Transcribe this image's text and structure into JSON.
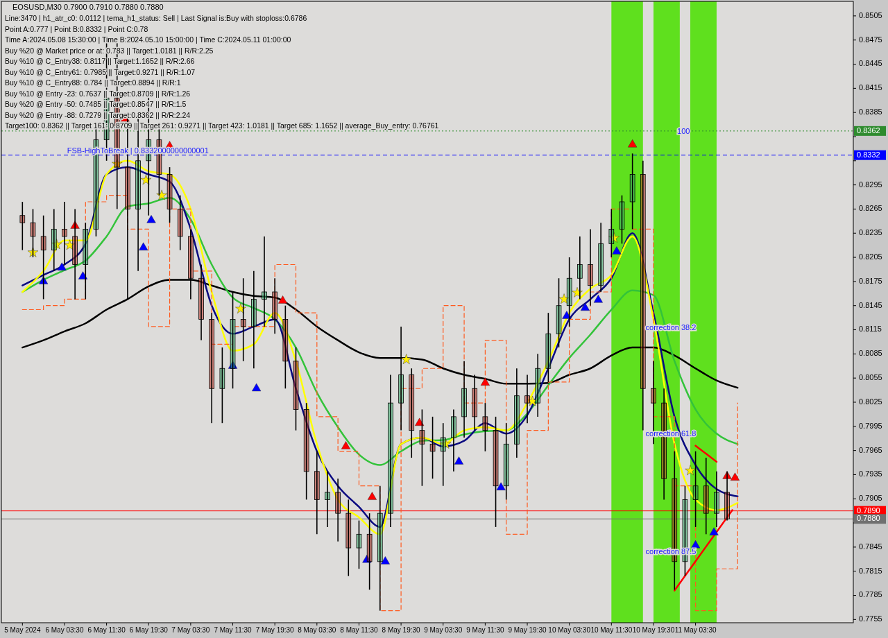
{
  "chart_data": {
    "type": "candlestick",
    "title": "EOSUSD,M30  0.7900 0.7910 0.7880 0.7880",
    "annotations": [
      "Line:3470 | h1_atr_c0: 0.0112 | tema_h1_status: Sell | Last Signal is:Buy with stoploss:0.6786",
      "Point A:0.777 | Point B:0.8332 | Point C:0.78",
      "Time A:2024.05.08 15:30:00 | Time B:2024.05.10 15:00:00 | Time C:2024.05.11 01:00:00",
      "Buy %20 @ Market price or at: 0.783 || Target:1.0181 || R/R:2.25",
      "Buy %10 @ C_Entry38: 0.8117 || Target:1.1652 || R/R:2.66",
      "Buy %10 @ C_Entry61: 0.7985 || Target:0.9271 || R/R:1.07",
      "Buy %10 @ C_Entry88: 0.784 || Target:0.8894 || R/R:1",
      "Buy %10 @ Entry -23: 0.7637 || Target:0.8709 || R/R:1.26",
      "Buy %20 @ Entry -50: 0.7485 || Target:0.8547 || R/R:1.5",
      "Buy %20 @ Entry -88: 0.7279 || Target:0.8362 || R/R:2.24",
      "Target100: 0.8362 || Target 161: 0.8709 || Target 261: 0.9271 || Target 423: 1.0181 || Target 685: 1.1652 || average_Buy_entry: 0.76761",
      {
        "text": "FSB-HighToBreak | 0.8332000000000001",
        "x": "2024-05-06T04:00",
        "y": 0.8332
      },
      {
        "text": "100",
        "x": "2024-05-11T00:00",
        "y": 0.8356
      },
      {
        "text": "correction 38.2",
        "x": "2024-05-10T18:00",
        "y": 0.8112
      },
      {
        "text": "correction 61.8",
        "x": "2024-05-10T18:00",
        "y": 0.798
      },
      {
        "text": "correction 87.5",
        "x": "2024-05-10T18:00",
        "y": 0.7834
      }
    ],
    "xlim": [
      "2024-05-05T15:30",
      "2024-05-12T09:30"
    ],
    "xticks": [
      {
        "value": "2024-05-05T19:30",
        "label": "5 May 2024"
      },
      {
        "value": "2024-05-06T03:30",
        "label": "6 May 03:30"
      },
      {
        "value": "2024-05-06T11:30",
        "label": "6 May 11:30"
      },
      {
        "value": "2024-05-06T19:30",
        "label": "6 May 19:30"
      },
      {
        "value": "2024-05-07T03:30",
        "label": "7 May 03:30"
      },
      {
        "value": "2024-05-07T11:30",
        "label": "7 May 11:30"
      },
      {
        "value": "2024-05-07T19:30",
        "label": "7 May 19:30"
      },
      {
        "value": "2024-05-08T03:30",
        "label": "8 May 03:30"
      },
      {
        "value": "2024-05-08T11:30",
        "label": "8 May 11:30"
      },
      {
        "value": "2024-05-08T19:30",
        "label": "8 May 19:30"
      },
      {
        "value": "2024-05-09T03:30",
        "label": "9 May 03:30"
      },
      {
        "value": "2024-05-09T11:30",
        "label": "9 May 11:30"
      },
      {
        "value": "2024-05-09T19:30",
        "label": "9 May 19:30"
      },
      {
        "value": "2024-05-10T03:30",
        "label": "10 May 03:30"
      },
      {
        "value": "2024-05-10T11:30",
        "label": "10 May 11:30"
      },
      {
        "value": "2024-05-10T19:30",
        "label": "10 May 19:30"
      },
      {
        "value": "2024-05-11T03:30",
        "label": "11 May 03:30"
      }
    ],
    "ylim": [
      0.7751,
      0.8523
    ],
    "yticks": [
      0.7755,
      0.7785,
      0.7815,
      0.7845,
      {
        "value": 0.7875,
        "label": null
      },
      0.7905,
      0.7935,
      0.7965,
      0.7995,
      0.8025,
      0.8055,
      0.8085,
      0.8115,
      0.8145,
      0.8175,
      0.8205,
      0.8235,
      0.8265,
      0.8295,
      {
        "value": 0.8325,
        "label": null
      },
      {
        "value": 0.8355,
        "label": null
      },
      0.8385,
      0.8415,
      0.8445,
      0.8475,
      0.8505
    ],
    "bands": [
      {
        "axis": "x",
        "from": "2024-05-10T11:30",
        "to": "2024-05-10T17:30",
        "color": "#5fe01e"
      },
      {
        "axis": "x",
        "from": "2024-05-10T19:30",
        "to": "2024-05-11T00:30",
        "color": "#5fe01e"
      },
      {
        "axis": "x",
        "from": "2024-05-11T02:30",
        "to": "2024-05-11T07:30",
        "color": "#5fe01e"
      }
    ],
    "ref_lines": [
      {
        "axis": "y",
        "value": 0.8362,
        "label": "0.8362",
        "color": "#2e8b2e",
        "line_style": "dotted"
      },
      {
        "axis": "y",
        "value": 0.8332,
        "label": "0.8332",
        "color": "#0000ff",
        "line_style": "dashed"
      },
      {
        "axis": "y",
        "value": 0.789,
        "label": "0.7890",
        "color": "#ff0000",
        "line_style": "solid"
      },
      {
        "axis": "y",
        "value": 0.788,
        "label": "0.7880",
        "color": "#707070",
        "line_style": "solid"
      }
    ],
    "x": [
      "2024-05-05T19:30",
      "2024-05-05T21:30",
      "2024-05-05T23:30",
      "2024-05-06T01:30",
      "2024-05-06T03:30",
      "2024-05-06T05:30",
      "2024-05-06T07:30",
      "2024-05-06T09:30",
      "2024-05-06T11:30",
      "2024-05-06T13:30",
      "2024-05-06T15:30",
      "2024-05-06T17:30",
      "2024-05-06T19:30",
      "2024-05-06T21:30",
      "2024-05-06T23:30",
      "2024-05-07T01:30",
      "2024-05-07T03:30",
      "2024-05-07T05:30",
      "2024-05-07T07:30",
      "2024-05-07T09:30",
      "2024-05-07T11:30",
      "2024-05-07T13:30",
      "2024-05-07T15:30",
      "2024-05-07T17:30",
      "2024-05-07T19:30",
      "2024-05-07T21:30",
      "2024-05-07T23:30",
      "2024-05-08T01:30",
      "2024-05-08T03:30",
      "2024-05-08T05:30",
      "2024-05-08T07:30",
      "2024-05-08T09:30",
      "2024-05-08T11:30",
      "2024-05-08T13:30",
      "2024-05-08T15:30",
      "2024-05-08T17:30",
      "2024-05-08T19:30",
      "2024-05-08T21:30",
      "2024-05-08T23:30",
      "2024-05-09T01:30",
      "2024-05-09T03:30",
      "2024-05-09T05:30",
      "2024-05-09T07:30",
      "2024-05-09T09:30",
      "2024-05-09T11:30",
      "2024-05-09T13:30",
      "2024-05-09T15:30",
      "2024-05-09T17:30",
      "2024-05-09T19:30",
      "2024-05-09T21:30",
      "2024-05-09T23:30",
      "2024-05-10T01:30",
      "2024-05-10T03:30",
      "2024-05-10T05:30",
      "2024-05-10T07:30",
      "2024-05-10T09:30",
      "2024-05-10T11:30",
      "2024-05-10T13:30",
      "2024-05-10T15:30",
      "2024-05-10T17:30",
      "2024-05-10T19:30",
      "2024-05-10T21:30",
      "2024-05-10T23:30",
      "2024-05-11T01:30",
      "2024-05-11T03:30",
      "2024-05-11T05:30",
      "2024-05-11T07:30",
      "2024-05-11T09:30"
    ],
    "ohlc": [
      [
        0.8257,
        0.8274,
        0.8214,
        0.8248
      ],
      [
        0.8248,
        0.8265,
        0.8205,
        0.8231
      ],
      [
        0.8231,
        0.8257,
        0.8153,
        0.8214
      ],
      [
        0.8214,
        0.8265,
        0.8188,
        0.824
      ],
      [
        0.824,
        0.8274,
        0.8196,
        0.8231
      ],
      [
        0.8231,
        0.8265,
        0.8153,
        0.8196
      ],
      [
        0.8196,
        0.8248,
        0.8153,
        0.824
      ],
      [
        0.824,
        0.8368,
        0.8231,
        0.8351
      ],
      [
        0.8351,
        0.848,
        0.8325,
        0.8403
      ],
      [
        0.8403,
        0.8471,
        0.8265,
        0.8317
      ],
      [
        0.8317,
        0.8385,
        0.8153,
        0.8265
      ],
      [
        0.8265,
        0.8377,
        0.8188,
        0.8325
      ],
      [
        0.8325,
        0.8403,
        0.8257,
        0.8351
      ],
      [
        0.8351,
        0.8368,
        0.8282,
        0.8308
      ],
      [
        0.8308,
        0.8317,
        0.8248,
        0.8265
      ],
      [
        0.8265,
        0.8282,
        0.8214,
        0.8231
      ],
      [
        0.8231,
        0.824,
        0.8153,
        0.8179
      ],
      [
        0.8179,
        0.8196,
        0.8102,
        0.8128
      ],
      [
        0.8128,
        0.8136,
        0.7999,
        0.8042
      ],
      [
        0.8042,
        0.8093,
        0.7999,
        0.8067
      ],
      [
        0.8067,
        0.8162,
        0.8042,
        0.8128
      ],
      [
        0.8128,
        0.8179,
        0.8076,
        0.8119
      ],
      [
        0.8119,
        0.8188,
        0.8067,
        0.8153
      ],
      [
        0.8153,
        0.8231,
        0.8119,
        0.8162
      ],
      [
        0.8162,
        0.8179,
        0.811,
        0.8128
      ],
      [
        0.8128,
        0.8145,
        0.8042,
        0.8076
      ],
      [
        0.8076,
        0.8093,
        0.799,
        0.8016
      ],
      [
        0.8016,
        0.8024,
        0.7904,
        0.7939
      ],
      [
        0.7939,
        0.7964,
        0.7861,
        0.7904
      ],
      [
        0.7904,
        0.7939,
        0.787,
        0.7913
      ],
      [
        0.7913,
        0.793,
        0.7852,
        0.7887
      ],
      [
        0.7887,
        0.7904,
        0.7809,
        0.7844
      ],
      [
        0.7844,
        0.7878,
        0.7818,
        0.7861
      ],
      [
        0.7861,
        0.7887,
        0.7792,
        0.7827
      ],
      [
        0.7827,
        0.7921,
        0.7766,
        0.7887
      ],
      [
        0.7887,
        0.8059,
        0.787,
        0.8024
      ],
      [
        0.8024,
        0.8119,
        0.799,
        0.8059
      ],
      [
        0.8059,
        0.8067,
        0.7956,
        0.799
      ],
      [
        0.799,
        0.8016,
        0.7921,
        0.7973
      ],
      [
        0.7973,
        0.8007,
        0.793,
        0.7964
      ],
      [
        0.7964,
        0.7999,
        0.7921,
        0.7981
      ],
      [
        0.7981,
        0.8016,
        0.7939,
        0.8007
      ],
      [
        0.8007,
        0.8076,
        0.7981,
        0.8042
      ],
      [
        0.8042,
        0.8059,
        0.799,
        0.8007
      ],
      [
        0.8007,
        0.8024,
        0.7964,
        0.799
      ],
      [
        0.799,
        0.8007,
        0.787,
        0.7921
      ],
      [
        0.7921,
        0.7999,
        0.7904,
        0.7973
      ],
      [
        0.7973,
        0.8067,
        0.7956,
        0.8033
      ],
      [
        0.8033,
        0.8059,
        0.7999,
        0.8024
      ],
      [
        0.8024,
        0.8085,
        0.8007,
        0.8067
      ],
      [
        0.8067,
        0.8136,
        0.805,
        0.811
      ],
      [
        0.811,
        0.8179,
        0.8093,
        0.8145
      ],
      [
        0.8145,
        0.8205,
        0.8119,
        0.8179
      ],
      [
        0.8179,
        0.8231,
        0.8153,
        0.8196
      ],
      [
        0.8196,
        0.824,
        0.8145,
        0.817
      ],
      [
        0.817,
        0.8248,
        0.8162,
        0.8222
      ],
      [
        0.8222,
        0.8265,
        0.8205,
        0.824
      ],
      [
        0.824,
        0.8282,
        0.8222,
        0.8274
      ],
      [
        0.8274,
        0.8334,
        0.824,
        0.8308
      ],
      [
        0.8308,
        0.8325,
        0.799,
        0.8042
      ],
      [
        0.8042,
        0.8076,
        0.7973,
        0.8024
      ],
      [
        0.8024,
        0.8042,
        0.7904,
        0.793
      ],
      [
        0.793,
        0.7964,
        0.7792,
        0.7827
      ],
      [
        0.7827,
        0.7921,
        0.7809,
        0.7904
      ],
      [
        0.7904,
        0.7964,
        0.787,
        0.7921
      ],
      [
        0.7921,
        0.7956,
        0.7861,
        0.7887
      ],
      [
        0.7887,
        0.7939,
        0.787,
        0.7913
      ],
      [
        0.7913,
        0.7939,
        0.7878,
        0.788
      ]
    ],
    "series": [
      {
        "type": "line",
        "color": "#000000",
        "x": [
          "2024-05-05T19:30",
          "2024-05-05T23:30",
          "2024-05-06T03:30",
          "2024-05-06T07:30",
          "2024-05-06T11:30",
          "2024-05-06T15:30",
          "2024-05-06T19:30",
          "2024-05-06T23:30",
          "2024-05-07T03:30",
          "2024-05-07T07:30",
          "2024-05-07T11:30",
          "2024-05-07T15:30",
          "2024-05-07T19:30",
          "2024-05-07T23:30",
          "2024-05-08T03:30",
          "2024-05-08T07:30",
          "2024-05-08T11:30",
          "2024-05-08T15:30",
          "2024-05-08T19:30",
          "2024-05-08T23:30",
          "2024-05-09T03:30",
          "2024-05-09T07:30",
          "2024-05-09T11:30",
          "2024-05-09T15:30",
          "2024-05-09T19:30",
          "2024-05-09T23:30",
          "2024-05-10T03:30",
          "2024-05-10T07:30",
          "2024-05-10T11:30",
          "2024-05-10T15:30",
          "2024-05-10T19:30",
          "2024-05-10T23:30",
          "2024-05-11T03:30",
          "2024-05-11T07:30",
          "2024-05-11T11:30"
        ],
        "values": [
          0.8093,
          0.8102,
          0.8113,
          0.8123,
          0.814,
          0.8153,
          0.8169,
          0.8177,
          0.8177,
          0.817,
          0.8162,
          0.8157,
          0.8155,
          0.814,
          0.8119,
          0.8102,
          0.8087,
          0.808,
          0.808,
          0.8078,
          0.8067,
          0.8059,
          0.8054,
          0.8048,
          0.8048,
          0.8049,
          0.8059,
          0.8067,
          0.8083,
          0.8093,
          0.8093,
          0.8083,
          0.8067,
          0.8052,
          0.8043
        ]
      },
      {
        "type": "line",
        "color": "#33c33a",
        "x": [
          "2024-05-05T19:30",
          "2024-05-05T23:30",
          "2024-05-06T03:30",
          "2024-05-06T07:30",
          "2024-05-06T11:30",
          "2024-05-06T15:30",
          "2024-05-06T19:30",
          "2024-05-06T23:30",
          "2024-05-07T03:30",
          "2024-05-07T07:30",
          "2024-05-07T11:30",
          "2024-05-07T15:30",
          "2024-05-07T19:30",
          "2024-05-07T23:30",
          "2024-05-08T03:30",
          "2024-05-08T07:30",
          "2024-05-08T11:30",
          "2024-05-08T15:30",
          "2024-05-08T19:30",
          "2024-05-08T23:30",
          "2024-05-09T03:30",
          "2024-05-09T07:30",
          "2024-05-09T11:30",
          "2024-05-09T15:30",
          "2024-05-09T19:30",
          "2024-05-09T23:30",
          "2024-05-10T03:30",
          "2024-05-10T07:30",
          "2024-05-10T11:30",
          "2024-05-10T15:30",
          "2024-05-10T19:30",
          "2024-05-10T23:30",
          "2024-05-11T03:30",
          "2024-05-11T07:30",
          "2024-05-11T11:30"
        ],
        "values": [
          0.8162,
          0.8177,
          0.8189,
          0.8201,
          0.8231,
          0.8268,
          0.8272,
          0.8279,
          0.8252,
          0.8196,
          0.8155,
          0.8142,
          0.8128,
          0.8093,
          0.8037,
          0.7994,
          0.796,
          0.7947,
          0.7964,
          0.7977,
          0.7978,
          0.7985,
          0.7989,
          0.799,
          0.8011,
          0.8046,
          0.808,
          0.8109,
          0.814,
          0.8164,
          0.8158,
          0.8076,
          0.8016,
          0.7986,
          0.7973
        ]
      },
      {
        "type": "line",
        "color": "#0a0a80",
        "x": [
          "2024-05-05T19:30",
          "2024-05-05T23:30",
          "2024-05-06T03:30",
          "2024-05-06T07:30",
          "2024-05-06T11:30",
          "2024-05-06T15:30",
          "2024-05-06T19:30",
          "2024-05-06T23:30",
          "2024-05-07T03:30",
          "2024-05-07T07:30",
          "2024-05-07T11:30",
          "2024-05-07T15:30",
          "2024-05-07T19:30",
          "2024-05-07T23:30",
          "2024-05-08T03:30",
          "2024-05-08T07:30",
          "2024-05-08T11:30",
          "2024-05-08T15:30",
          "2024-05-08T19:30",
          "2024-05-08T23:30",
          "2024-05-09T03:30",
          "2024-05-09T07:30",
          "2024-05-09T11:30",
          "2024-05-09T15:30",
          "2024-05-09T19:30",
          "2024-05-09T23:30",
          "2024-05-10T03:30",
          "2024-05-10T07:30",
          "2024-05-10T11:30",
          "2024-05-10T15:30",
          "2024-05-10T19:30",
          "2024-05-10T23:30",
          "2024-05-11T03:30",
          "2024-05-11T07:30",
          "2024-05-11T11:30"
        ],
        "values": [
          0.817,
          0.8183,
          0.8196,
          0.8222,
          0.8308,
          0.8317,
          0.8308,
          0.8299,
          0.824,
          0.8145,
          0.811,
          0.8119,
          0.8128,
          0.8042,
          0.7964,
          0.7921,
          0.7895,
          0.787,
          0.7973,
          0.7981,
          0.797,
          0.7977,
          0.7999,
          0.7986,
          0.8009,
          0.8067,
          0.8128,
          0.8153,
          0.8179,
          0.8235,
          0.8136,
          0.8007,
          0.7947,
          0.7917,
          0.7908
        ]
      },
      {
        "type": "line",
        "color": "#ffff00",
        "x": [
          "2024-05-05T19:30",
          "2024-05-05T23:30",
          "2024-05-06T03:30",
          "2024-05-06T07:30",
          "2024-05-06T11:30",
          "2024-05-06T15:30",
          "2024-05-06T19:30",
          "2024-05-06T23:30",
          "2024-05-07T03:30",
          "2024-05-07T07:30",
          "2024-05-07T11:30",
          "2024-05-07T15:30",
          "2024-05-07T19:30",
          "2024-05-07T23:30",
          "2024-05-08T03:30",
          "2024-05-08T07:30",
          "2024-05-08T11:30",
          "2024-05-08T15:30",
          "2024-05-08T19:30",
          "2024-05-08T23:30",
          "2024-05-09T03:30",
          "2024-05-09T07:30",
          "2024-05-09T11:30",
          "2024-05-09T15:30",
          "2024-05-09T19:30",
          "2024-05-09T23:30",
          "2024-05-10T03:30",
          "2024-05-10T07:30",
          "2024-05-10T11:30",
          "2024-05-10T15:30",
          "2024-05-10T19:30",
          "2024-05-10T23:30",
          "2024-05-11T03:30",
          "2024-05-11T07:30",
          "2024-05-11T11:30"
        ],
        "values": [
          0.8162,
          0.8188,
          0.8226,
          0.8226,
          0.8308,
          0.8325,
          0.8312,
          0.8308,
          0.8265,
          0.8162,
          0.8089,
          0.8097,
          0.8136,
          0.8076,
          0.7973,
          0.7904,
          0.7882,
          0.7861,
          0.7973,
          0.7981,
          0.7973,
          0.799,
          0.7994,
          0.799,
          0.8024,
          0.8076,
          0.8136,
          0.8166,
          0.8183,
          0.8231,
          0.8128,
          0.7973,
          0.7904,
          0.7891,
          0.79
        ]
      },
      {
        "type": "step",
        "color": "#ff5a1e",
        "line_style": "dashed",
        "x": [
          "2024-05-05T19:30",
          "2024-05-05T23:30",
          "2024-05-06T03:30",
          "2024-05-06T07:30",
          "2024-05-06T11:30",
          "2024-05-06T15:30",
          "2024-05-06T19:30",
          "2024-05-06T23:30",
          "2024-05-07T03:30",
          "2024-05-07T07:30",
          "2024-05-07T11:30",
          "2024-05-07T15:30",
          "2024-05-07T19:30",
          "2024-05-07T23:30",
          "2024-05-08T03:30",
          "2024-05-08T07:30",
          "2024-05-08T11:30",
          "2024-05-08T15:30",
          "2024-05-08T19:30",
          "2024-05-08T23:30",
          "2024-05-09T03:30",
          "2024-05-09T07:30",
          "2024-05-09T11:30",
          "2024-05-09T15:30",
          "2024-05-09T19:30",
          "2024-05-09T23:30",
          "2024-05-10T03:30",
          "2024-05-10T07:30",
          "2024-05-10T11:30",
          "2024-05-10T15:30",
          "2024-05-10T19:30",
          "2024-05-10T23:30",
          "2024-05-11T03:30",
          "2024-05-11T07:30",
          "2024-05-11T11:30"
        ],
        "values": [
          0.814,
          0.8145,
          0.8153,
          0.8274,
          0.8282,
          0.824,
          0.8119,
          0.8265,
          0.8188,
          0.8097,
          0.8119,
          0.8119,
          0.8196,
          0.8136,
          0.8007,
          0.7964,
          0.7921,
          0.7766,
          0.8042,
          0.8067,
          0.8145,
          0.8024,
          0.8102,
          0.7861,
          0.799,
          0.805,
          0.8128,
          0.8162,
          0.8265,
          0.824,
          0.8007,
          0.7921,
          0.7766,
          0.7818,
          0.8024
        ]
      },
      {
        "type": "line",
        "color": "#ff0000",
        "x": [
          "2024-05-10T23:30",
          "2024-05-11T10:30"
        ],
        "values": [
          0.7791,
          0.7891
        ]
      },
      {
        "type": "line",
        "color": "#ff0000",
        "x": [
          "2024-05-11T03:30",
          "2024-05-11T07:30"
        ],
        "values": [
          0.7971,
          0.7951
        ]
      },
      {
        "type": "scatter",
        "color": "#0000ff",
        "marker": "triangle",
        "x": [
          "2024-05-05T23:30",
          "2024-05-06T03:00",
          "2024-05-06T07:00",
          "2024-05-06T18:30",
          "2024-05-06T20:00",
          "2024-05-07T11:30",
          "2024-05-07T16:00",
          "2024-05-08T13:00",
          "2024-05-08T16:30",
          "2024-05-09T06:30",
          "2024-05-09T14:30",
          "2024-05-10T03:00",
          "2024-05-10T06:30",
          "2024-05-10T09:00",
          "2024-05-10T12:30",
          "2024-05-11T03:30",
          "2024-05-11T07:00"
        ],
        "values": [
          0.8175,
          0.8192,
          0.8181,
          0.8217,
          0.8251,
          0.807,
          0.8042,
          0.7829,
          0.7827,
          0.7951,
          0.7919,
          0.8132,
          0.8142,
          0.8152,
          0.8212,
          0.7847,
          0.7863
        ]
      },
      {
        "type": "scatter",
        "color": "#ff0000",
        "marker": "triangle",
        "x": [
          "2024-05-06T05:30",
          "2024-05-06T15:00",
          "2024-05-06T23:30",
          "2024-05-07T21:00",
          "2024-05-08T09:00",
          "2024-05-08T14:00",
          "2024-05-08T23:00",
          "2024-05-09T11:30",
          "2024-05-10T15:30",
          "2024-05-11T09:30",
          "2024-05-11T11:00"
        ],
        "values": [
          0.8244,
          0.8377,
          0.8343,
          0.8151,
          0.797,
          0.7907,
          0.7999,
          0.8049,
          0.8345,
          0.7933,
          0.7931
        ]
      },
      {
        "type": "scatter",
        "color": "#ffee00",
        "marker": "star",
        "x": [
          "2024-05-05T21:30",
          "2024-05-06T02:00",
          "2024-05-06T04:30",
          "2024-05-06T13:30",
          "2024-05-06T19:00",
          "2024-05-06T22:00",
          "2024-05-07T13:00",
          "2024-05-08T20:30",
          "2024-05-09T04:00",
          "2024-05-09T20:30",
          "2024-05-10T02:30",
          "2024-05-10T05:00",
          "2024-05-10T12:00",
          "2024-05-11T02:30"
        ],
        "values": [
          0.8211,
          0.8221,
          0.822,
          0.8321,
          0.8301,
          0.8282,
          0.8141,
          0.8078,
          0.7973,
          0.8026,
          0.8153,
          0.8161,
          0.8229,
          0.794
        ]
      }
    ]
  }
}
